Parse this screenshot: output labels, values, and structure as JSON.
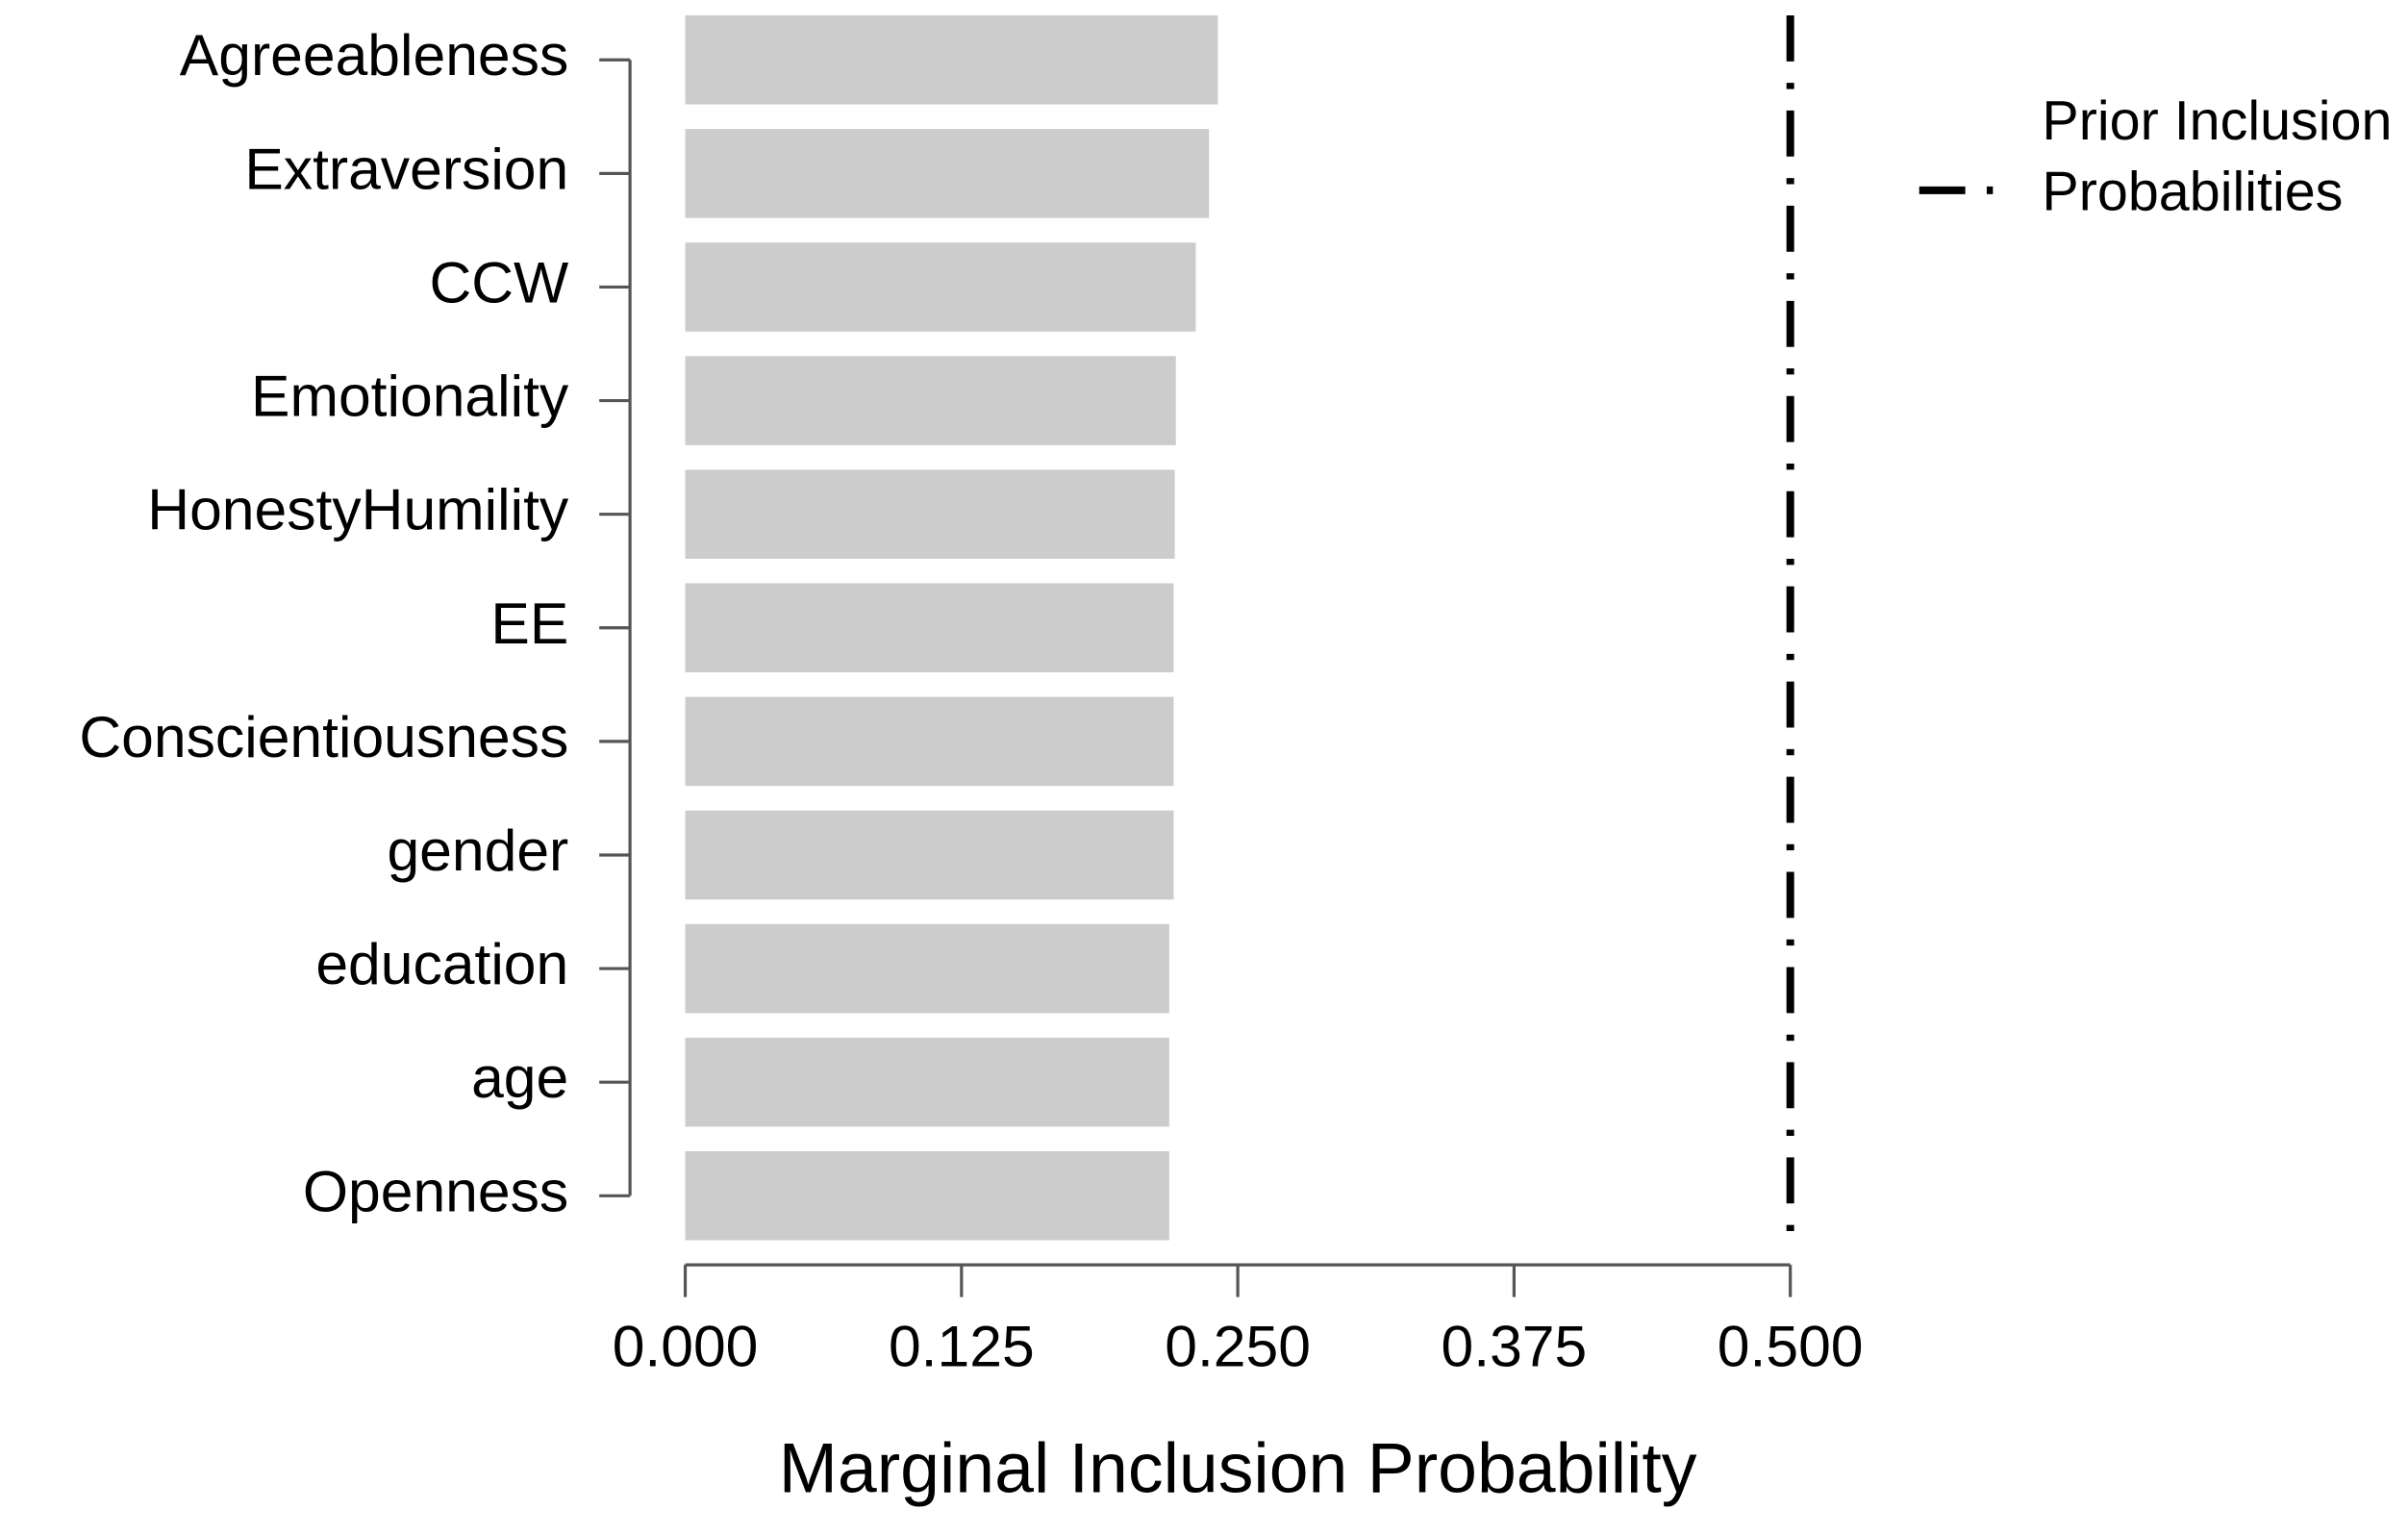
{
  "chart_data": {
    "type": "barh",
    "categories": [
      "Agreeableness",
      "Extraversion",
      "CCW",
      "Emotionality",
      "HonestyHumility",
      "EE",
      "Conscientiousness",
      "gender",
      "education",
      "age",
      "Openness"
    ],
    "values": [
      0.241,
      0.237,
      0.231,
      0.222,
      0.2215,
      0.221,
      0.221,
      0.221,
      0.219,
      0.219,
      0.219
    ],
    "color": "#cccccc",
    "x_label": "Marginal Inclusion Probability",
    "xlim": [
      0,
      0.5
    ],
    "xticks": [
      {
        "value": 0,
        "label": "0.000"
      },
      {
        "value": 0.125,
        "label": "0.125"
      },
      {
        "value": 0.25,
        "label": "0.250"
      },
      {
        "value": 0.375,
        "label": "0.375"
      },
      {
        "value": 0.5,
        "label": "0.500"
      }
    ],
    "reference_line": {
      "name": "Prior Inclusion Probabilities",
      "value": 0.5,
      "color": "#000000",
      "style": "dashdot"
    },
    "legend": "right"
  }
}
